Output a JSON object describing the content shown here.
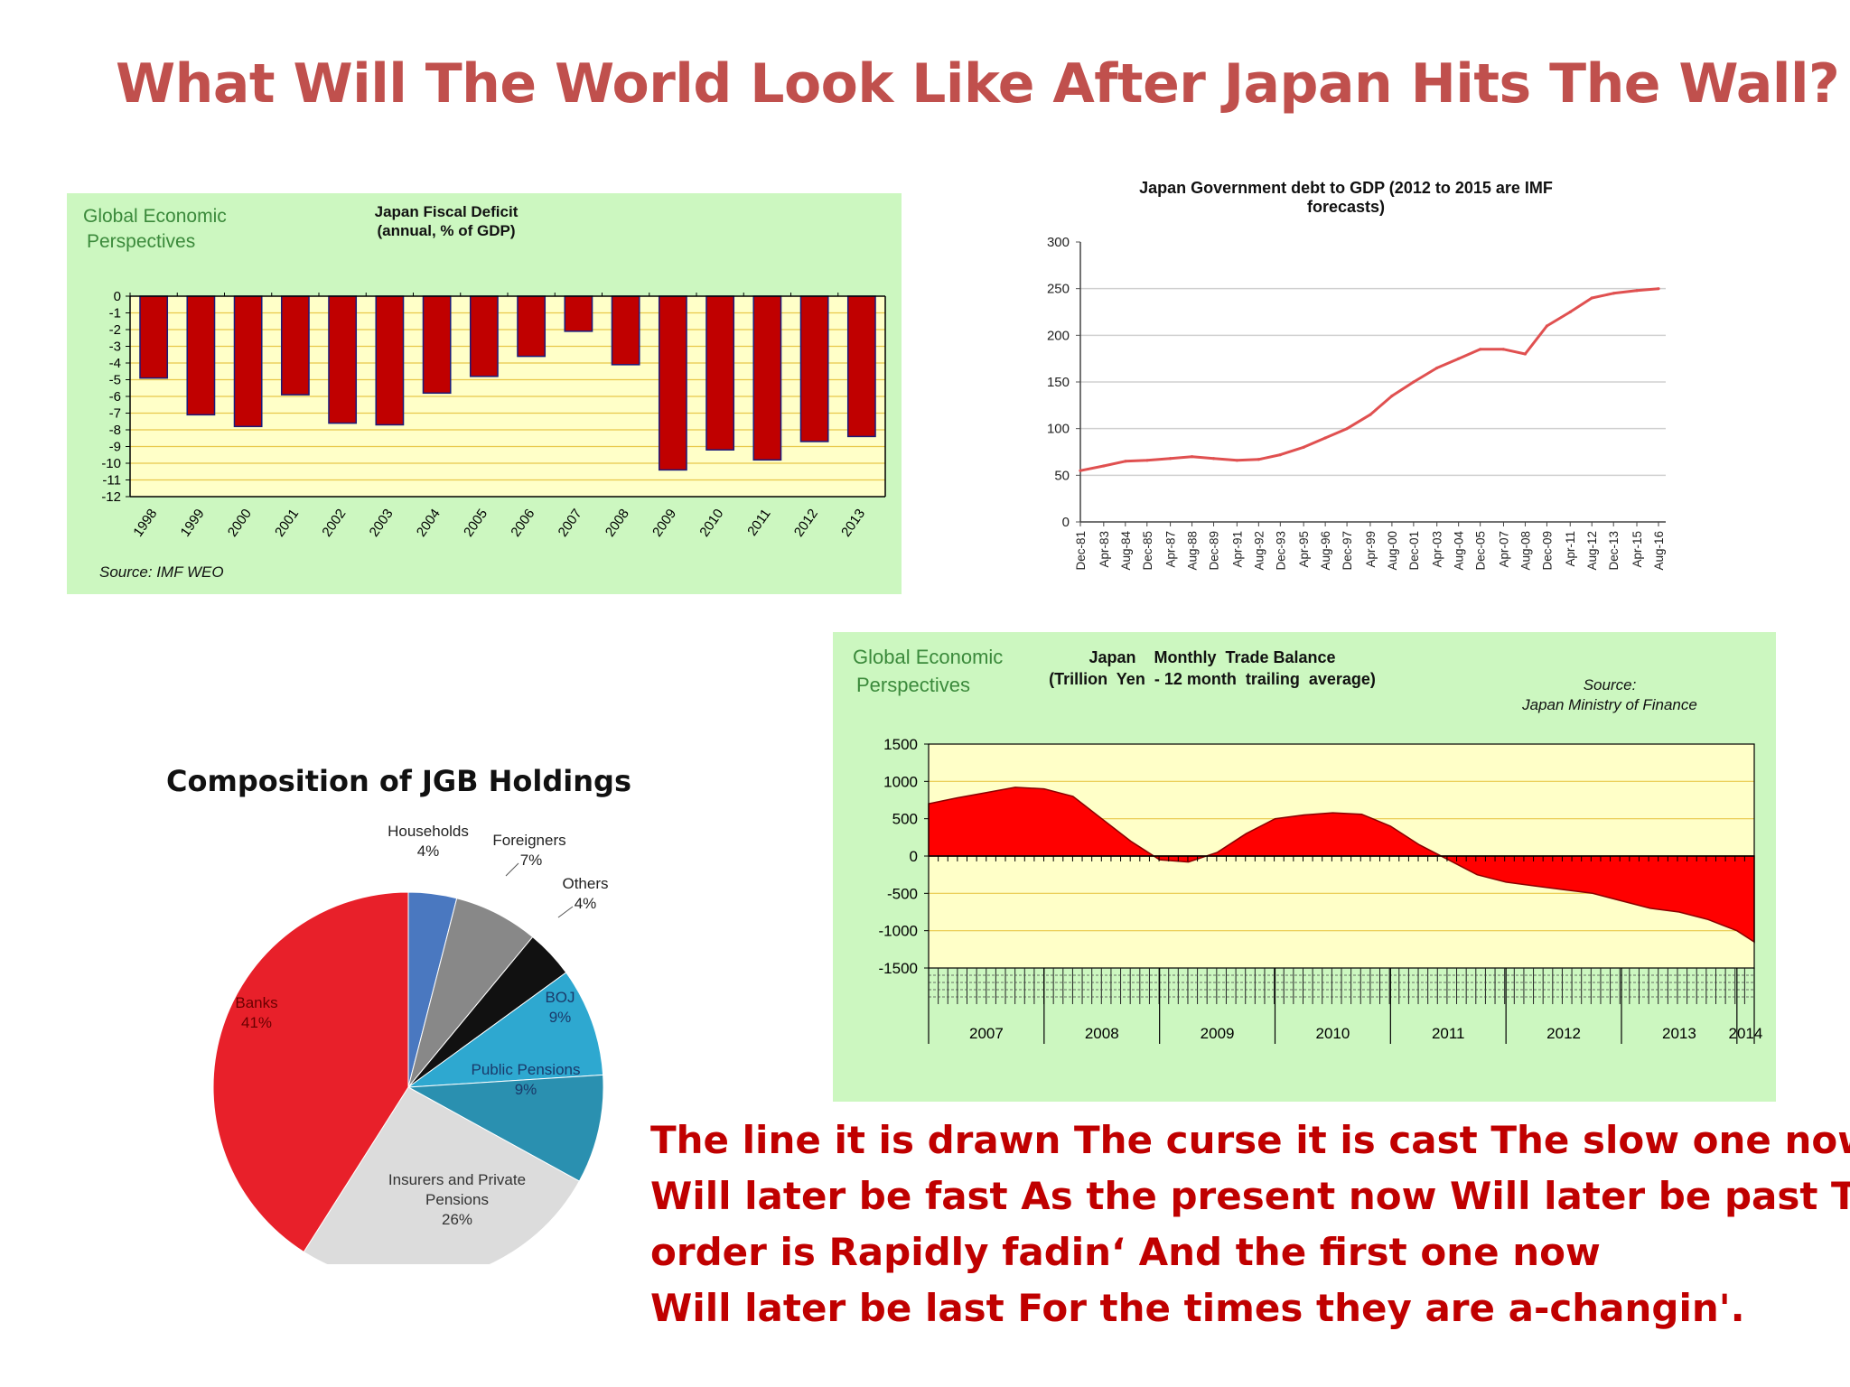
{
  "slide": {
    "title": "What Will The World Look Like After Japan Hits The Wall?",
    "lyrics": [
      "The line it is drawn The curse it is cast The slow one now",
      "Will later be fast As the present now Will later be past The",
      "order is Rapidly fadin‘ And the first one now",
      "Will later be last For the times they are a-changin'."
    ]
  },
  "colors": {
    "title": "#c0504d",
    "lyrics": "#c00000",
    "panel_green": "#ccf7c0",
    "plot_yellow": "#ffffc8",
    "bar_red": "#c00000",
    "line_red": "#e05050",
    "area_red": "#ff0000"
  },
  "chart_data": [
    {
      "type": "bar",
      "brand": [
        "Global Economic",
        "Perspectives"
      ],
      "title": [
        "Japan Fiscal Deficit",
        "(annual, % of GDP)"
      ],
      "source": "Source: IMF WEO",
      "categories": [
        "1998",
        "1999",
        "2000",
        "2001",
        "2002",
        "2003",
        "2004",
        "2005",
        "2006",
        "2007",
        "2008",
        "2009",
        "2010",
        "2011",
        "2012",
        "2013"
      ],
      "values": [
        -4.9,
        -7.1,
        -7.8,
        -5.9,
        -7.6,
        -7.7,
        -5.8,
        -4.8,
        -3.6,
        -2.1,
        -4.1,
        -10.4,
        -9.2,
        -9.8,
        -8.7,
        -8.4
      ],
      "ylim": [
        -12,
        0
      ],
      "yticks": [
        0,
        -1,
        -2,
        -3,
        -4,
        -5,
        -6,
        -7,
        -8,
        -9,
        -10,
        -11,
        -12
      ],
      "ytick_labels": [
        "0",
        "-1",
        "-2",
        "-3",
        "-4",
        "-5",
        "-6",
        "-7",
        "-8",
        "-9",
        "-10",
        "-11",
        "-12"
      ],
      "grid": true
    },
    {
      "type": "line",
      "title": [
        "Japan Government debt to GDP (2012 to 2015 are IMF",
        "forecasts)"
      ],
      "ylim": [
        0,
        300
      ],
      "yticks": [
        0,
        50,
        100,
        150,
        200,
        250,
        300
      ],
      "ytick_labels": [
        "0",
        "50",
        "100",
        "150",
        "200",
        "250",
        "300"
      ],
      "xtick_labels": [
        "Dec-81",
        "Apr-83",
        "Aug-84",
        "Dec-85",
        "Apr-87",
        "Aug-88",
        "Dec-89",
        "Apr-91",
        "Aug-92",
        "Dec-93",
        "Apr-95",
        "Aug-96",
        "Dec-97",
        "Apr-99",
        "Aug-00",
        "Dec-01",
        "Apr-03",
        "Aug-04",
        "Dec-05",
        "Apr-07",
        "Aug-08",
        "Dec-09",
        "Apr-11",
        "Aug-12",
        "Dec-13",
        "Apr-15",
        "Aug-16"
      ],
      "x": [
        1981.9,
        1983.3,
        1984.6,
        1985.9,
        1987.3,
        1988.6,
        1989.9,
        1991.3,
        1992.6,
        1993.9,
        1995.3,
        1996.6,
        1997.9,
        1999.3,
        2000.6,
        2001.9,
        2003.3,
        2004.6,
        2005.9,
        2007.3,
        2008.6,
        2009.9,
        2011.3,
        2012.6,
        2013.9,
        2015.3,
        2016.6
      ],
      "values": [
        55,
        60,
        65,
        66,
        68,
        70,
        68,
        66,
        67,
        72,
        80,
        90,
        100,
        115,
        135,
        150,
        165,
        175,
        185,
        185,
        180,
        210,
        225,
        240,
        245,
        248,
        250
      ],
      "grid": true
    },
    {
      "type": "pie",
      "title": "Composition of JGB Holdings",
      "slices": [
        {
          "name": "Households",
          "label": "4%",
          "value": 4,
          "color": "#4a78c0"
        },
        {
          "name": "Foreigners",
          "label": "7%",
          "value": 7,
          "color": "#888888"
        },
        {
          "name": "Others",
          "label": "4%",
          "value": 4,
          "color": "#111111"
        },
        {
          "name": "BOJ",
          "label": "9%",
          "value": 9,
          "color": "#2ea8d0"
        },
        {
          "name": "Public Pensions",
          "label": "9%",
          "value": 9,
          "color": "#2a90b0"
        },
        {
          "name": "Insurers and Private Pensions",
          "label": "26%",
          "value": 26,
          "color": "#dcdcdc"
        },
        {
          "name": "Banks",
          "label": "41%",
          "value": 41,
          "color": "#e8202a"
        }
      ]
    },
    {
      "type": "area",
      "brand": [
        "Global Economic",
        "Perspectives"
      ],
      "title": [
        "Japan    Monthly  Trade Balance",
        "(Trillion  Yen  - 12 month  trailing  average)"
      ],
      "source": [
        "Source:",
        "Japan Ministry of Finance"
      ],
      "ylim": [
        -1500,
        1500
      ],
      "yticks": [
        1500,
        1000,
        500,
        0,
        -500,
        -1000,
        -1500
      ],
      "ytick_labels": [
        "1500",
        "1000",
        "500",
        "0",
        "-500",
        "-1000",
        "-1500"
      ],
      "year_labels": [
        "2007",
        "2008",
        "2009",
        "2010",
        "2011",
        "2012",
        "2013",
        "2014"
      ],
      "x": [
        2007.0,
        2007.25,
        2007.5,
        2007.75,
        2008.0,
        2008.25,
        2008.5,
        2008.75,
        2009.0,
        2009.25,
        2009.5,
        2009.75,
        2010.0,
        2010.25,
        2010.5,
        2010.75,
        2011.0,
        2011.25,
        2011.5,
        2011.75,
        2012.0,
        2012.25,
        2012.5,
        2012.75,
        2013.0,
        2013.25,
        2013.5,
        2013.75,
        2014.0,
        2014.15
      ],
      "values": [
        700,
        780,
        850,
        920,
        900,
        800,
        500,
        200,
        -50,
        -80,
        50,
        300,
        500,
        550,
        580,
        560,
        400,
        150,
        -50,
        -250,
        -350,
        -400,
        -450,
        -500,
        -600,
        -700,
        -750,
        -850,
        -1000,
        -1150
      ],
      "grid": true
    }
  ]
}
